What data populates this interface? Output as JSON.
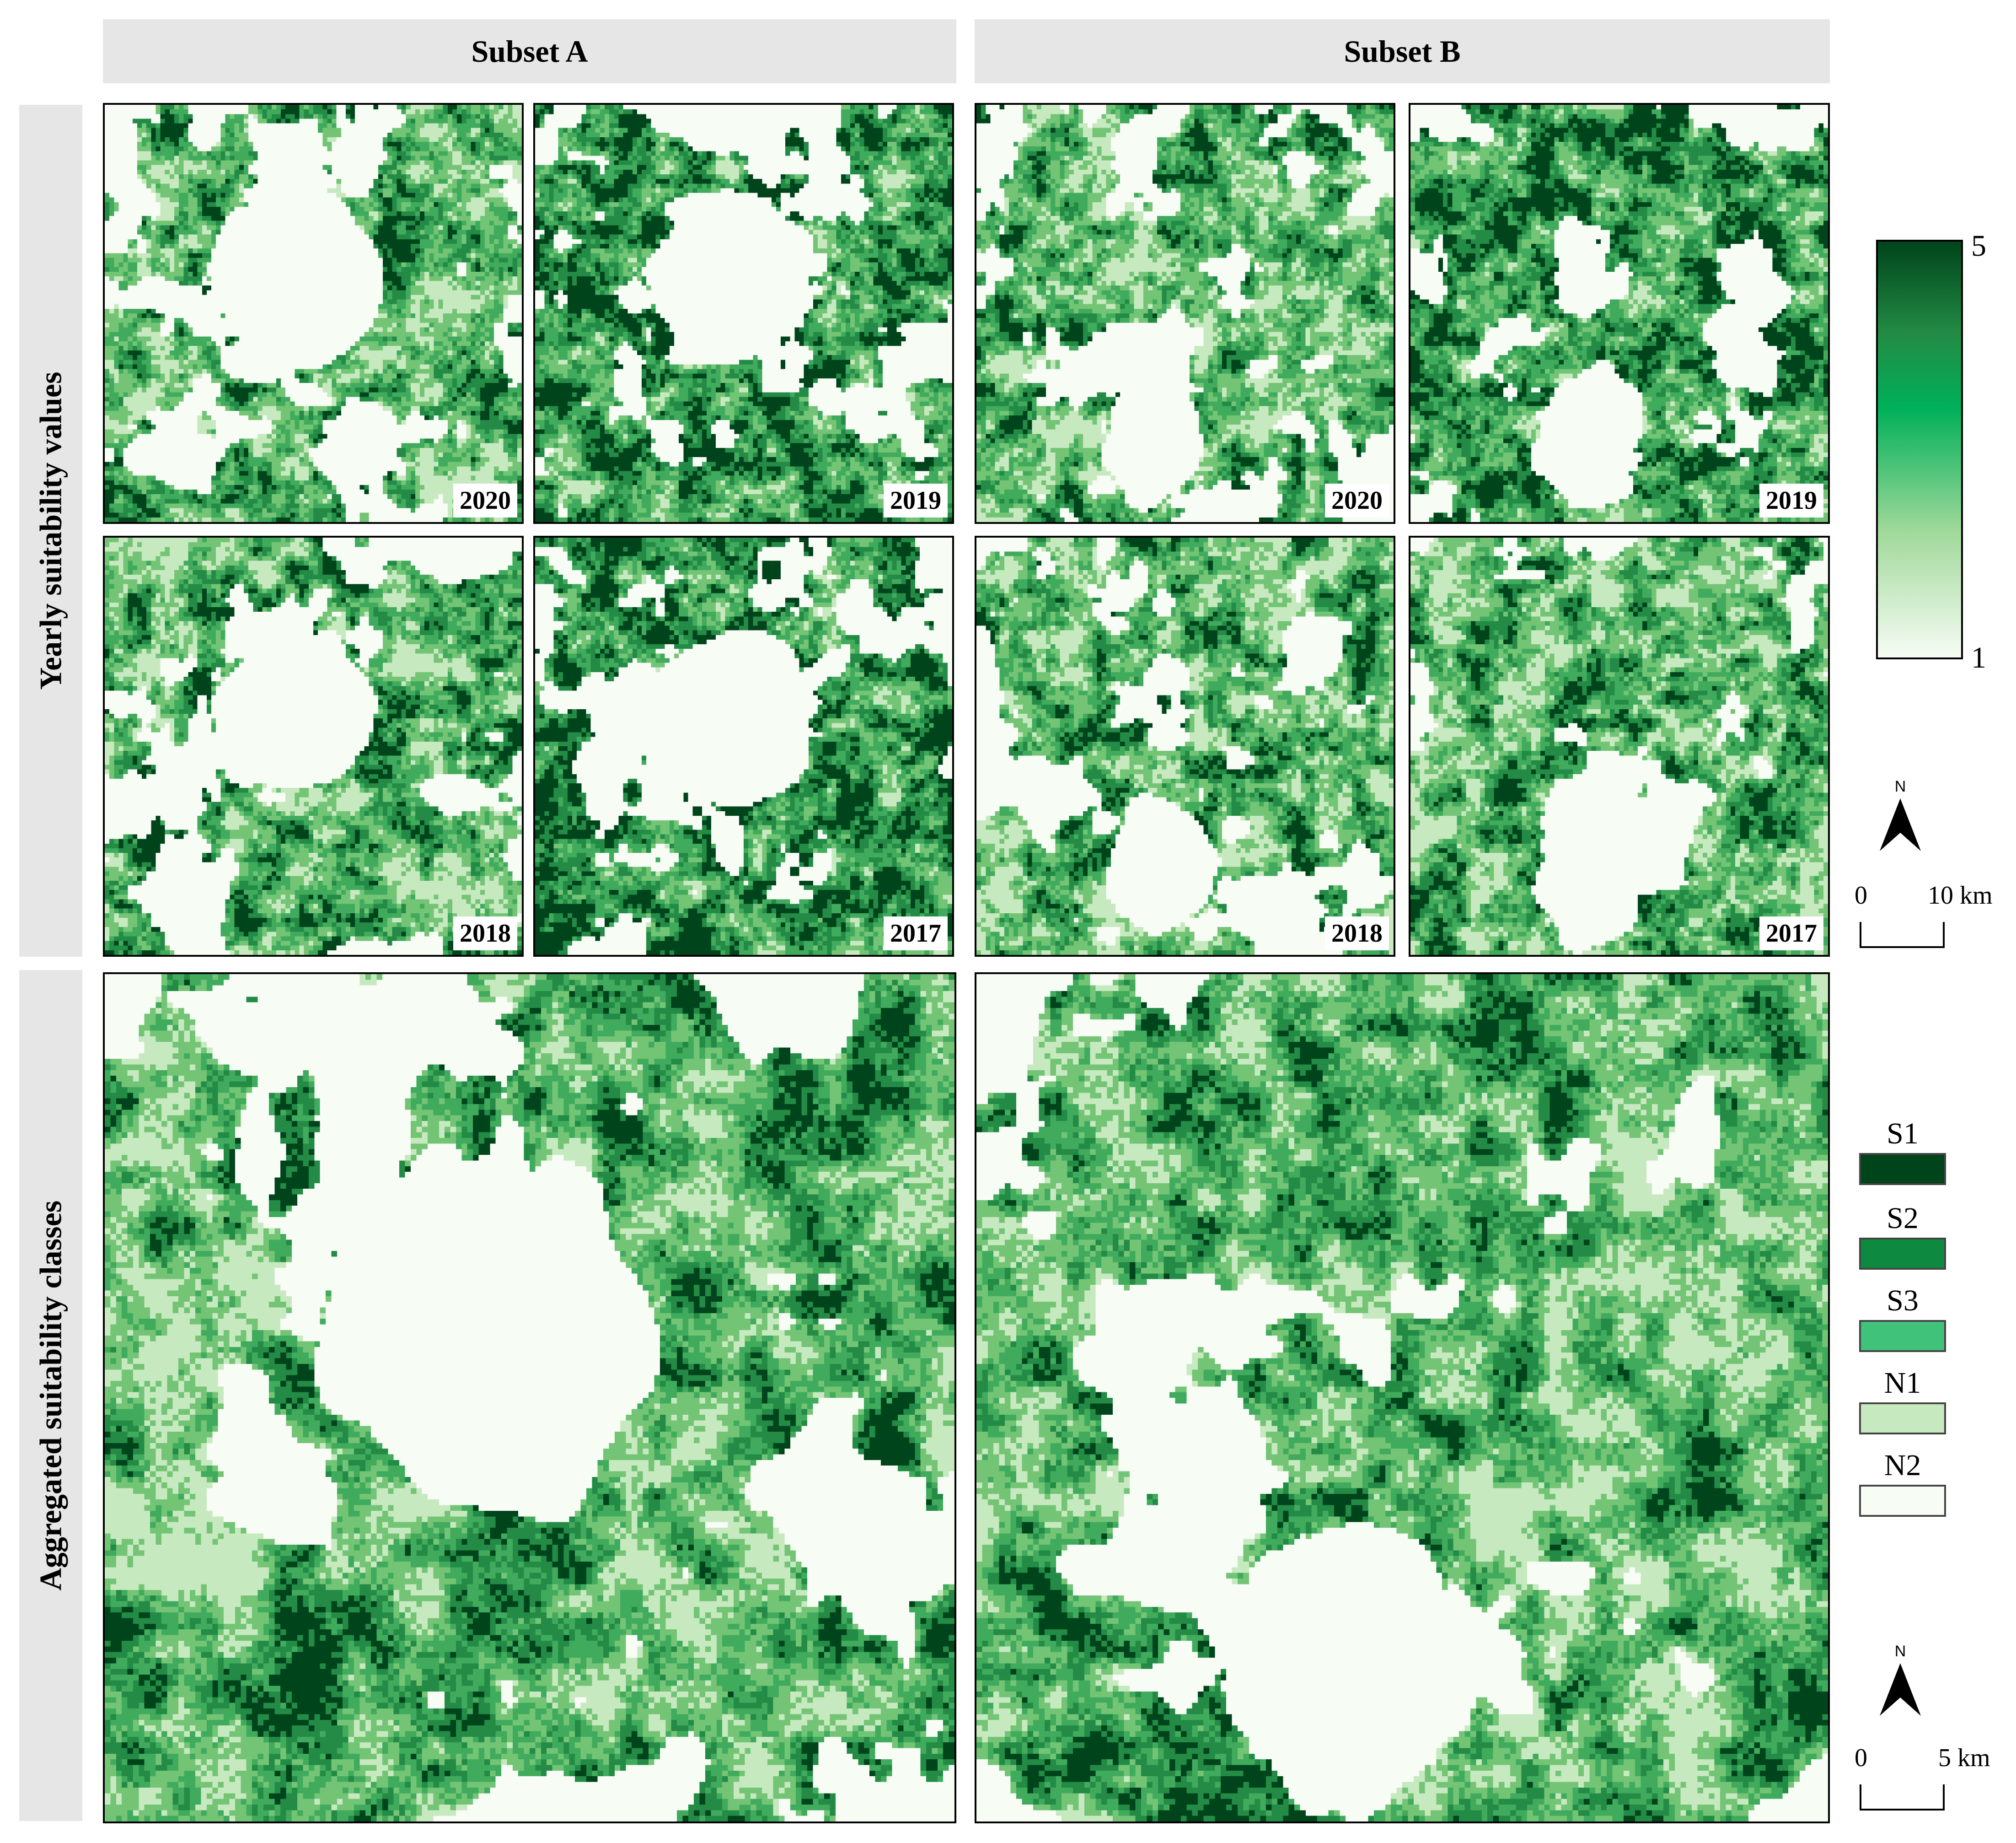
{
  "columns": {
    "subset_a": "Subset A",
    "subset_b": "Subset B"
  },
  "rows": {
    "yearly": "Yearly suitability values",
    "aggregated": "Aggregated suitability classes"
  },
  "yearly_maps": [
    {
      "subset": "A",
      "year": "2020"
    },
    {
      "subset": "A",
      "year": "2019"
    },
    {
      "subset": "A",
      "year": "2018"
    },
    {
      "subset": "A",
      "year": "2017"
    },
    {
      "subset": "B",
      "year": "2020"
    },
    {
      "subset": "B",
      "year": "2019"
    },
    {
      "subset": "B",
      "year": "2018"
    },
    {
      "subset": "B",
      "year": "2017"
    }
  ],
  "colorbar": {
    "max_label": "5",
    "min_label": "1",
    "colors": [
      "#00441b",
      "#238b45",
      "#00b05a",
      "#a1d99b",
      "#f7fcf5"
    ]
  },
  "north_label": "N",
  "scalebar_top": {
    "start": "0",
    "end": "10 km"
  },
  "scalebar_bottom": {
    "start": "0",
    "end": "5 km"
  },
  "legend": [
    {
      "label": "S1",
      "color": "#00441b"
    },
    {
      "label": "S2",
      "color": "#0d8a40"
    },
    {
      "label": "S3",
      "color": "#41c27a"
    },
    {
      "label": "N1",
      "color": "#c7e9c0"
    },
    {
      "label": "N2",
      "color": "#f7fcf5"
    }
  ]
}
